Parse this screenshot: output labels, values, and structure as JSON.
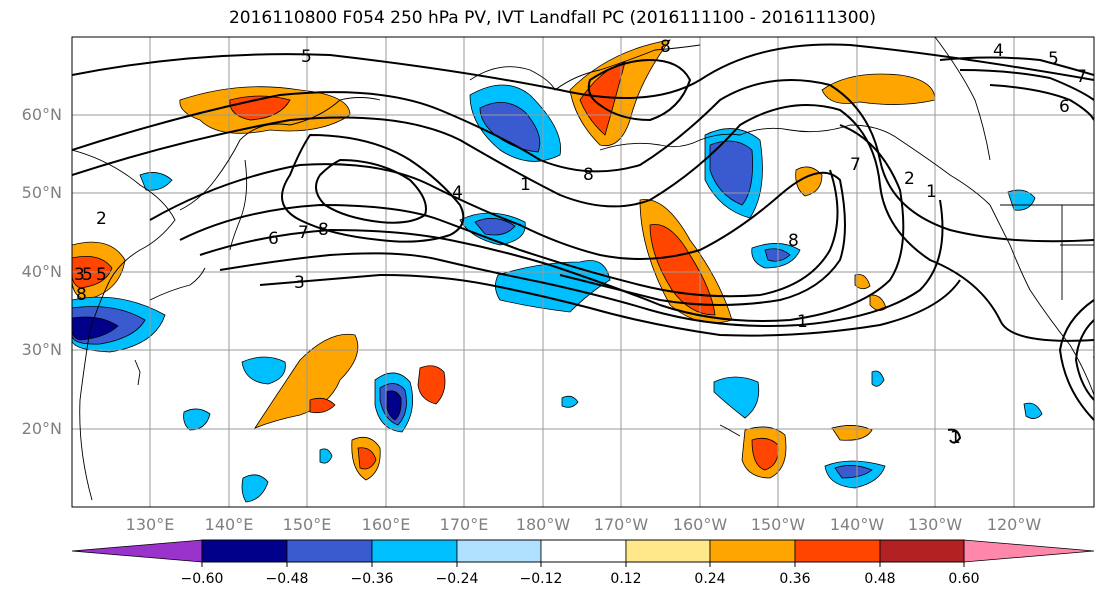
{
  "title": "2016110800 F054 250 hPa PV, IVT Landfall PC (2016111100 - 2016111300)",
  "map": {
    "lat_ticks": [
      "60°N",
      "50°N",
      "40°N",
      "30°N",
      "20°N"
    ],
    "lon_ticks": [
      "130°E",
      "140°E",
      "150°E",
      "160°E",
      "170°E",
      "180°W",
      "170°W",
      "160°W",
      "150°W",
      "140°W",
      "130°W",
      "120°W"
    ],
    "contour_labels": [
      "5",
      "4",
      "5",
      "7",
      "6",
      "2",
      "6",
      "7",
      "8",
      "4",
      "3",
      "1",
      "8",
      "8",
      "8",
      "7",
      "2",
      "1",
      "1",
      "1",
      "2",
      "3",
      "5",
      "5",
      "8"
    ]
  },
  "colorbar": {
    "ticks": [
      "−0.60",
      "−0.48",
      "−0.36",
      "−0.24",
      "−0.12",
      "0.12",
      "0.24",
      "0.36",
      "0.48",
      "0.60"
    ],
    "colors": [
      "#9933cc",
      "#00008b",
      "#3a5bcf",
      "#00bfff",
      "#b0e0ff",
      "#ffffff",
      "#ffe88a",
      "#ffa500",
      "#ff4500",
      "#b22222",
      "#ff88aa"
    ]
  }
}
